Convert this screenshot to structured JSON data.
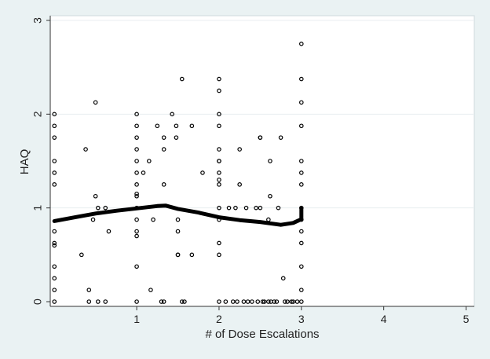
{
  "chart_data": {
    "type": "scatter",
    "title": "",
    "xlabel": "# of Dose Escalations",
    "ylabel": "HAQ",
    "xlim": [
      -0.05,
      5.1
    ],
    "ylim": [
      -0.05,
      3.05
    ],
    "xticks": [
      1,
      2,
      3,
      4,
      5
    ],
    "yticks": [
      0,
      1,
      2,
      3
    ],
    "grid": "horizontal",
    "legend": "none",
    "colors": {
      "background": "#eaf2f3",
      "plot_bg": "#ffffff",
      "points": "#000000",
      "line": "#000000",
      "grid": "#e8eef0"
    },
    "series": [
      {
        "kind": "points",
        "points": [
          [
            0,
            2.0
          ],
          [
            0,
            1.875
          ],
          [
            0,
            1.75
          ],
          [
            0,
            1.5
          ],
          [
            0,
            1.375
          ],
          [
            0,
            0.75
          ],
          [
            0,
            0.625
          ],
          [
            0,
            0.375
          ],
          [
            0,
            0.25
          ],
          [
            0,
            0.125
          ],
          [
            0,
            0.0
          ],
          [
            0,
            1.25
          ],
          [
            0,
            0.6
          ],
          [
            0.33,
            0.5
          ],
          [
            0.38,
            1.625
          ],
          [
            0.42,
            0.0
          ],
          [
            0.42,
            0.125
          ],
          [
            0.47,
            0.875
          ],
          [
            0.5,
            2.125
          ],
          [
            0.5,
            1.125
          ],
          [
            0.53,
            1.0
          ],
          [
            0.53,
            0.0
          ],
          [
            0.62,
            0.0
          ],
          [
            0.62,
            1.0
          ],
          [
            0.66,
            0.75
          ],
          [
            1,
            2.0
          ],
          [
            1,
            1.875
          ],
          [
            1,
            1.75
          ],
          [
            1,
            1.625
          ],
          [
            1,
            1.5
          ],
          [
            1,
            1.375
          ],
          [
            1,
            1.25
          ],
          [
            1,
            1.125
          ],
          [
            1,
            1.0
          ],
          [
            1,
            0.875
          ],
          [
            1,
            0.75
          ],
          [
            1,
            0.7
          ],
          [
            1,
            0.375
          ],
          [
            1,
            0.0
          ],
          [
            1,
            1.15
          ],
          [
            1.08,
            1.375
          ],
          [
            1.15,
            1.5
          ],
          [
            1.2,
            0.875
          ],
          [
            1.17,
            0.125
          ],
          [
            1.25,
            1.875
          ],
          [
            1.3,
            0.0
          ],
          [
            1.33,
            1.75
          ],
          [
            1.33,
            1.625
          ],
          [
            1.33,
            1.25
          ],
          [
            1.33,
            0.0
          ],
          [
            1.43,
            2.0
          ],
          [
            1.48,
            1.75
          ],
          [
            1.48,
            1.875
          ],
          [
            1.5,
            0.875
          ],
          [
            1.5,
            0.5
          ],
          [
            1.5,
            0.75
          ],
          [
            1.5,
            0.5
          ],
          [
            1.55,
            0.0
          ],
          [
            1.55,
            2.375
          ],
          [
            1.58,
            0.0
          ],
          [
            1.67,
            1.875
          ],
          [
            1.67,
            0.5
          ],
          [
            1.8,
            1.375
          ],
          [
            2,
            2.375
          ],
          [
            2,
            2.25
          ],
          [
            2,
            2.0
          ],
          [
            2,
            1.875
          ],
          [
            2,
            1.625
          ],
          [
            2,
            1.5
          ],
          [
            2,
            1.375
          ],
          [
            2,
            1.3
          ],
          [
            2,
            1.25
          ],
          [
            2,
            1.0
          ],
          [
            2,
            0.875
          ],
          [
            2,
            0.625
          ],
          [
            2,
            0.5
          ],
          [
            2,
            0.0
          ],
          [
            2,
            1.5
          ],
          [
            2.08,
            0.0
          ],
          [
            2.12,
            1.0
          ],
          [
            2.17,
            0.0
          ],
          [
            2.2,
            1.0
          ],
          [
            2.22,
            0.0
          ],
          [
            2.25,
            1.25
          ],
          [
            2.25,
            1.625
          ],
          [
            2.3,
            0.0
          ],
          [
            2.33,
            1.0
          ],
          [
            2.35,
            0.0
          ],
          [
            2.4,
            0.0
          ],
          [
            2.45,
            1.0
          ],
          [
            2.47,
            0.0
          ],
          [
            2.5,
            1.0
          ],
          [
            2.5,
            1.75
          ],
          [
            2.5,
            1.75
          ],
          [
            2.53,
            0.0
          ],
          [
            2.55,
            0.0
          ],
          [
            2.6,
            0.0
          ],
          [
            2.6,
            0.875
          ],
          [
            2.62,
            1.5
          ],
          [
            2.62,
            1.125
          ],
          [
            2.63,
            0.0
          ],
          [
            2.67,
            0.0
          ],
          [
            2.7,
            0.0
          ],
          [
            2.72,
            1.0
          ],
          [
            2.75,
            1.75
          ],
          [
            2.78,
            0.25
          ],
          [
            2.8,
            0.0
          ],
          [
            2.83,
            0.0
          ],
          [
            2.88,
            0.0
          ],
          [
            2.9,
            0.0
          ],
          [
            2.95,
            0.0
          ],
          [
            3,
            2.75
          ],
          [
            3,
            2.375
          ],
          [
            3,
            2.125
          ],
          [
            3,
            1.875
          ],
          [
            3,
            1.5
          ],
          [
            3,
            1.375
          ],
          [
            3,
            1.25
          ],
          [
            3,
            1.0
          ],
          [
            3,
            0.875
          ],
          [
            3,
            0.75
          ],
          [
            3,
            0.625
          ],
          [
            3,
            0.375
          ],
          [
            3,
            0.125
          ],
          [
            3,
            0.0
          ]
        ]
      },
      {
        "kind": "line",
        "points": [
          [
            0,
            0.86
          ],
          [
            0.25,
            0.9
          ],
          [
            0.5,
            0.94
          ],
          [
            0.75,
            0.97
          ],
          [
            1,
            0.995
          ],
          [
            1.25,
            1.02
          ],
          [
            1.35,
            1.025
          ],
          [
            1.5,
            0.99
          ],
          [
            1.75,
            0.95
          ],
          [
            2,
            0.9
          ],
          [
            2.25,
            0.87
          ],
          [
            2.5,
            0.85
          ],
          [
            2.75,
            0.82
          ],
          [
            2.9,
            0.84
          ],
          [
            3,
            0.88
          ],
          [
            3,
            0.95
          ],
          [
            3,
            1.0
          ]
        ]
      }
    ]
  }
}
